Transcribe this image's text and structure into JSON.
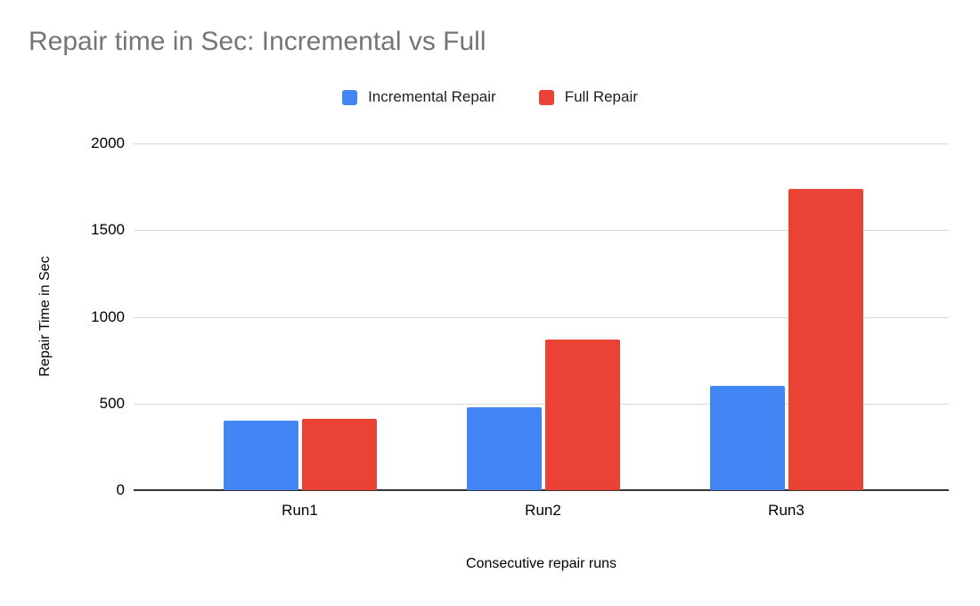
{
  "chart_data": {
    "type": "bar",
    "title": "Repair time in Sec: Incremental vs Full",
    "categories": [
      "Run1",
      "Run2",
      "Run3"
    ],
    "series": [
      {
        "name": "Incremental Repair",
        "color": "#4285f4",
        "values": [
          400,
          480,
          600
        ]
      },
      {
        "name": "Full Repair",
        "color": "#ea4335",
        "values": [
          410,
          870,
          1740
        ]
      }
    ],
    "xlabel": "Consecutive repair runs",
    "ylabel": "Repair Time in Sec",
    "ylim": [
      0,
      2000
    ],
    "yticks": [
      0,
      500,
      1000,
      1500,
      2000
    ],
    "grid": true,
    "legend_position": "top"
  },
  "colors": {
    "background": "#ffffff",
    "title_text": "#757575",
    "axis_text": "#000000",
    "gridline": "#d9d9d9",
    "axis_line": "#333333",
    "series_blue": "#4285f4",
    "series_red": "#ea4335"
  }
}
